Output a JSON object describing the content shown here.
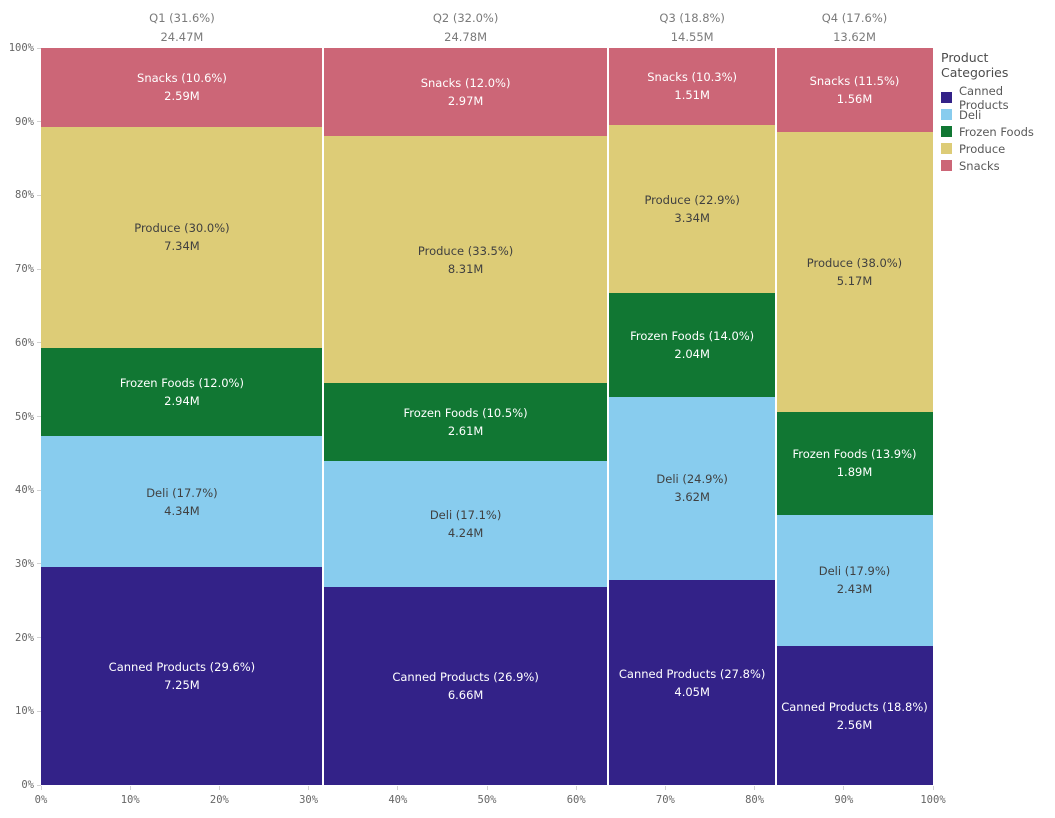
{
  "chart_data": {
    "type": "mekko",
    "title": "",
    "legend_title": "Product Categories",
    "x_ticks": [
      "0%",
      "10%",
      "20%",
      "30%",
      "40%",
      "50%",
      "60%",
      "70%",
      "80%",
      "90%",
      "100%"
    ],
    "y_ticks": [
      "0%",
      "10%",
      "20%",
      "30%",
      "40%",
      "50%",
      "60%",
      "70%",
      "80%",
      "90%",
      "100%"
    ],
    "categories": [
      {
        "name": "Canned Products",
        "color": "#332288",
        "text_color": "#ffffff"
      },
      {
        "name": "Deli",
        "color": "#88CCEE",
        "text_color": "#404040"
      },
      {
        "name": "Frozen Foods",
        "color": "#117733",
        "text_color": "#ffffff"
      },
      {
        "name": "Produce",
        "color": "#DDCC77",
        "text_color": "#404040"
      },
      {
        "name": "Snacks",
        "color": "#CC6677",
        "text_color": "#ffffff"
      }
    ],
    "columns": [
      {
        "header": "Q1 (31.6%)",
        "total": "24.47M",
        "width_pct": 31.6,
        "segments": [
          {
            "category": "Canned Products",
            "label": "Canned Products (29.6%)",
            "value": "7.25M",
            "height_pct": 29.6
          },
          {
            "category": "Deli",
            "label": "Deli (17.7%)",
            "value": "4.34M",
            "height_pct": 17.7
          },
          {
            "category": "Frozen Foods",
            "label": "Frozen Foods (12.0%)",
            "value": "2.94M",
            "height_pct": 12.0
          },
          {
            "category": "Produce",
            "label": "Produce (30.0%)",
            "value": "7.34M",
            "height_pct": 30.0
          },
          {
            "category": "Snacks",
            "label": "Snacks (10.6%)",
            "value": "2.59M",
            "height_pct": 10.6
          }
        ]
      },
      {
        "header": "Q2 (32.0%)",
        "total": "24.78M",
        "width_pct": 32.0,
        "segments": [
          {
            "category": "Canned Products",
            "label": "Canned Products (26.9%)",
            "value": "6.66M",
            "height_pct": 26.9
          },
          {
            "category": "Deli",
            "label": "Deli (17.1%)",
            "value": "4.24M",
            "height_pct": 17.1
          },
          {
            "category": "Frozen Foods",
            "label": "Frozen Foods (10.5%)",
            "value": "2.61M",
            "height_pct": 10.5
          },
          {
            "category": "Produce",
            "label": "Produce (33.5%)",
            "value": "8.31M",
            "height_pct": 33.5
          },
          {
            "category": "Snacks",
            "label": "Snacks (12.0%)",
            "value": "2.97M",
            "height_pct": 12.0
          }
        ]
      },
      {
        "header": "Q3 (18.8%)",
        "total": "14.55M",
        "width_pct": 18.8,
        "segments": [
          {
            "category": "Canned Products",
            "label": "Canned Products (27.8%)",
            "value": "4.05M",
            "height_pct": 27.8
          },
          {
            "category": "Deli",
            "label": "Deli (24.9%)",
            "value": "3.62M",
            "height_pct": 24.9
          },
          {
            "category": "Frozen Foods",
            "label": "Frozen Foods (14.0%)",
            "value": "2.04M",
            "height_pct": 14.0
          },
          {
            "category": "Produce",
            "label": "Produce (22.9%)",
            "value": "3.34M",
            "height_pct": 22.9
          },
          {
            "category": "Snacks",
            "label": "Snacks (10.3%)",
            "value": "1.51M",
            "height_pct": 10.3
          }
        ]
      },
      {
        "header": "Q4 (17.6%)",
        "total": "13.62M",
        "width_pct": 17.6,
        "segments": [
          {
            "category": "Canned Products",
            "label": "Canned Products (18.8%)",
            "value": "2.56M",
            "height_pct": 18.8
          },
          {
            "category": "Deli",
            "label": "Deli (17.9%)",
            "value": "2.43M",
            "height_pct": 17.9
          },
          {
            "category": "Frozen Foods",
            "label": "Frozen Foods (13.9%)",
            "value": "1.89M",
            "height_pct": 13.9
          },
          {
            "category": "Produce",
            "label": "Produce (38.0%)",
            "value": "5.17M",
            "height_pct": 38.0
          },
          {
            "category": "Snacks",
            "label": "Snacks (11.5%)",
            "value": "1.56M",
            "height_pct": 11.5
          }
        ]
      }
    ]
  }
}
